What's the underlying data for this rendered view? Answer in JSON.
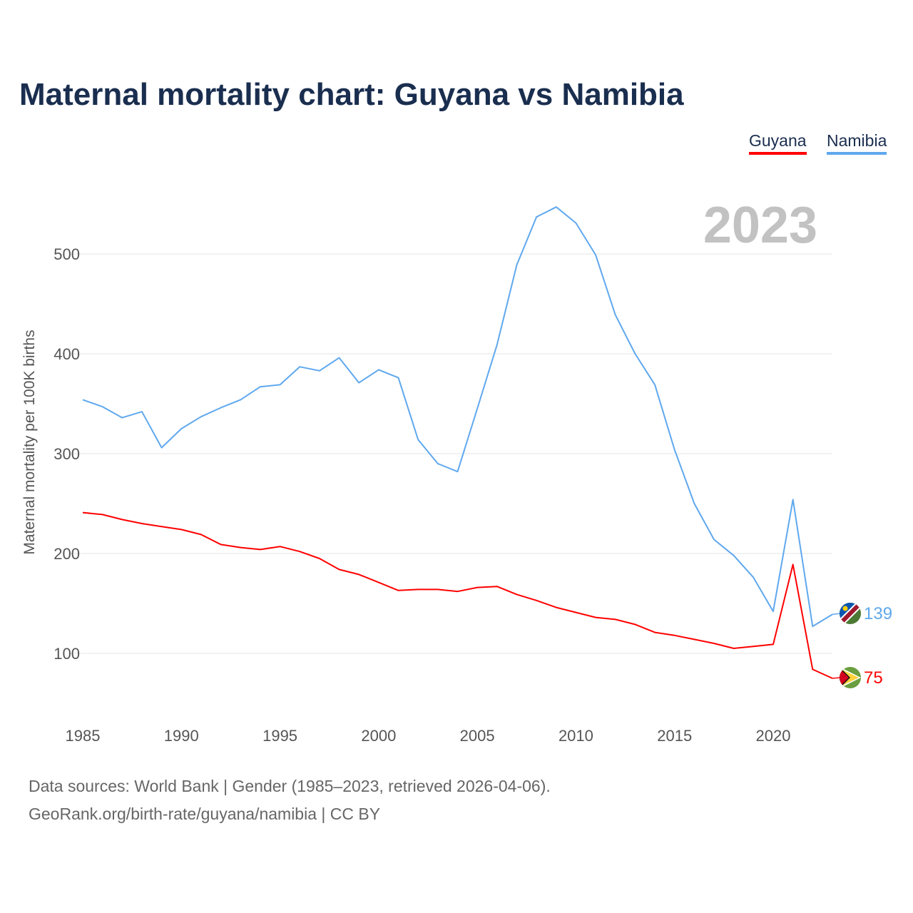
{
  "chart_data": {
    "type": "line",
    "title": "Maternal mortality chart: Guyana vs Namibia",
    "ylabel": "Maternal mortality per 100K births",
    "xlabel": "",
    "year_label": "2023",
    "xlim": [
      1985,
      2023
    ],
    "ylim": [
      40,
      560
    ],
    "x_ticks": [
      1985,
      1990,
      1995,
      2000,
      2005,
      2010,
      2015,
      2020
    ],
    "y_ticks": [
      100,
      200,
      300,
      400,
      500
    ],
    "grid": true,
    "legend_position": "top-right",
    "x": [
      1985,
      1986,
      1987,
      1988,
      1989,
      1990,
      1991,
      1992,
      1993,
      1994,
      1995,
      1996,
      1997,
      1998,
      1999,
      2000,
      2001,
      2002,
      2003,
      2004,
      2005,
      2006,
      2007,
      2008,
      2009,
      2010,
      2011,
      2012,
      2013,
      2014,
      2015,
      2016,
      2017,
      2018,
      2019,
      2020,
      2021,
      2022,
      2023
    ],
    "series": [
      {
        "name": "Guyana",
        "color": "#ff0000",
        "end_label": "75",
        "values": [
          241,
          239,
          234,
          230,
          227,
          224,
          219,
          209,
          206,
          204,
          207,
          202,
          195,
          184,
          179,
          171,
          163,
          164,
          164,
          162,
          166,
          167,
          159,
          153,
          146,
          141,
          136,
          134,
          129,
          121,
          118,
          114,
          110,
          105,
          107,
          109,
          189,
          84,
          75
        ]
      },
      {
        "name": "Namibia",
        "color": "#5fa8ee",
        "end_label": "139",
        "values": [
          354,
          347,
          336,
          342,
          306,
          325,
          337,
          346,
          354,
          367,
          369,
          387,
          383,
          396,
          371,
          384,
          376,
          314,
          290,
          282,
          345,
          409,
          489,
          537,
          547,
          531,
          499,
          439,
          400,
          369,
          304,
          250,
          214,
          198,
          176,
          142,
          254,
          127,
          139
        ]
      }
    ]
  },
  "footer": {
    "line1": "Data sources: World Bank | Gender (1985–2023, retrieved 2026-04-06).",
    "line2": "GeoRank.org/birth-rate/guyana/namibia | CC BY"
  }
}
